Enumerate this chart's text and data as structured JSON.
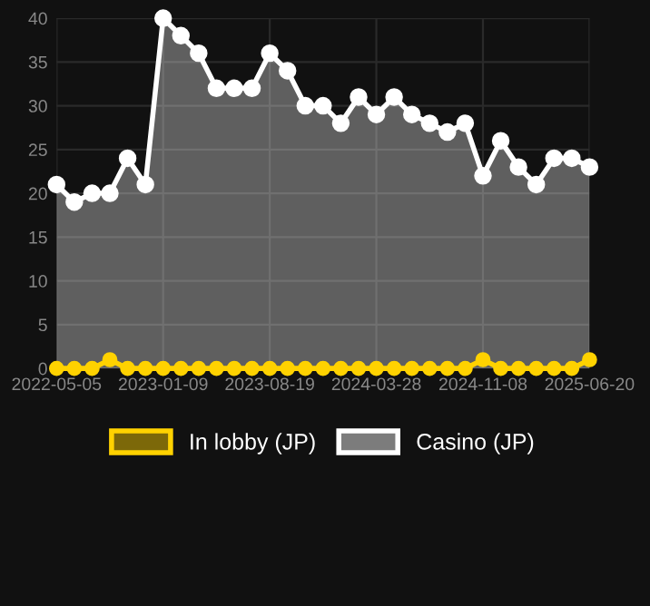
{
  "chart_data": {
    "type": "line",
    "categories": [
      "2022-05-05",
      null,
      null,
      null,
      null,
      null,
      "2023-01-09",
      null,
      null,
      null,
      null,
      null,
      "2023-08-19",
      null,
      null,
      null,
      null,
      null,
      "2024-03-28",
      null,
      null,
      null,
      null,
      null,
      "2024-11-08",
      null,
      null,
      null,
      null,
      null,
      "2025-06-20"
    ],
    "series": [
      {
        "name": "In lobby (JP)",
        "color": "#ffd200",
        "values": [
          0,
          0,
          0,
          1,
          0,
          0,
          0,
          0,
          0,
          0,
          0,
          0,
          0,
          0,
          0,
          0,
          0,
          0,
          0,
          0,
          0,
          0,
          0,
          0,
          1,
          0,
          0,
          0,
          0,
          0,
          1
        ]
      },
      {
        "name": "Casino (JP)",
        "type": "area",
        "color": "#ffffff",
        "values": [
          21,
          19,
          20,
          20,
          24,
          21,
          40,
          38,
          36,
          32,
          32,
          32,
          36,
          34,
          30,
          30,
          28,
          31,
          29,
          31,
          29,
          28,
          27,
          28,
          22,
          26,
          23,
          21,
          24,
          24,
          23
        ]
      }
    ],
    "ylim": [
      0,
      40
    ],
    "yticks": [
      0,
      5,
      10,
      15,
      20,
      25,
      30,
      35,
      40
    ],
    "grid": true,
    "legend": "bottom",
    "marker": "circle"
  }
}
